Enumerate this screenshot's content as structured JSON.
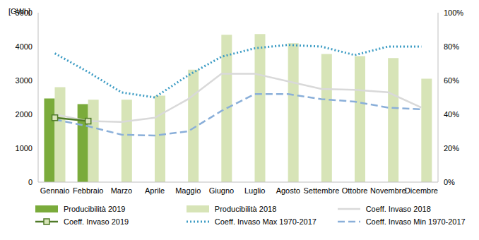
{
  "chart_data": {
    "type": "bar",
    "y_label": "[GWh]",
    "categories": [
      "Gennaio",
      "Febbraio",
      "Marzo",
      "Aprile",
      "Maggio",
      "Giugno",
      "Luglio",
      "Agosto",
      "Settembre",
      "Ottobre",
      "Novembre",
      "Dicembre"
    ],
    "ylim": [
      0,
      5000
    ],
    "yticks": [
      0,
      1000,
      2000,
      3000,
      4000,
      5000
    ],
    "y2lim": [
      0,
      100
    ],
    "y2ticks": [
      {
        "value": 0,
        "label": "0%"
      },
      {
        "value": 20,
        "label": "20%"
      },
      {
        "value": 40,
        "label": "40%"
      },
      {
        "value": 60,
        "label": "60%"
      },
      {
        "value": 80,
        "label": "80%"
      },
      {
        "value": 100,
        "label": "100%"
      }
    ],
    "grid": false,
    "legend": "bottom",
    "series": [
      {
        "name": "Producibilità 2019",
        "type": "bar",
        "color": "#7aab3b",
        "values": [
          2470,
          2300,
          null,
          null,
          null,
          null,
          null,
          null,
          null,
          null,
          null,
          null
        ]
      },
      {
        "name": "Producibilità 2018",
        "type": "bar",
        "color": "#d7e4b7",
        "values": [
          2800,
          2430,
          2430,
          2550,
          3320,
          4350,
          4370,
          4100,
          3780,
          3720,
          3660,
          3050
        ]
      },
      {
        "name": "Coeff. Invaso 2018",
        "type": "line",
        "axis": "y2",
        "color": "#d9d9d9",
        "line_style": "solid",
        "values": [
          40,
          36,
          35.5,
          38,
          49,
          64,
          64,
          59.5,
          55,
          54.5,
          53,
          44
        ]
      },
      {
        "name": "Coeff. Invaso 2019",
        "type": "line",
        "axis": "y2",
        "color": "#4f7a28",
        "line_style": "solid",
        "marker": "square",
        "values": [
          38,
          36,
          null,
          null,
          null,
          null,
          null,
          null,
          null,
          null,
          null,
          null
        ]
      },
      {
        "name": "Coeff. Invaso Max 1970-2017",
        "type": "line",
        "axis": "y2",
        "color": "#3d9cc4",
        "line_style": "dotted",
        "values": [
          76,
          65,
          53,
          50,
          63,
          74,
          79,
          81,
          80,
          75,
          80,
          80
        ]
      },
      {
        "name": "Coeff. Invaso Min 1970-2017",
        "type": "line",
        "axis": "y2",
        "color": "#8aafd9",
        "line_style": "dashed",
        "values": [
          37,
          33,
          28,
          27.5,
          30,
          42,
          52,
          52,
          49,
          47.5,
          44,
          43
        ]
      }
    ]
  }
}
